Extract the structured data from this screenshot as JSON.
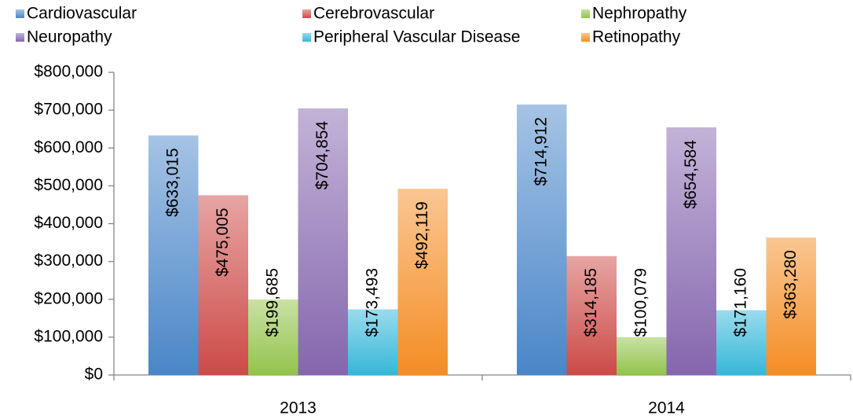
{
  "chart_data": {
    "type": "bar",
    "categories": [
      "2013",
      "2014"
    ],
    "series": [
      {
        "name": "Cardiovascular",
        "color": "#4a86c8",
        "values": [
          633015,
          714912
        ],
        "value_labels": [
          "$633,015",
          "$714,912"
        ]
      },
      {
        "name": "Cerebrovascular",
        "color": "#cc4a47",
        "values": [
          475005,
          314185
        ],
        "value_labels": [
          "$475,005",
          "$314,185"
        ]
      },
      {
        "name": "Nephropathy",
        "color": "#93c34a",
        "values": [
          199685,
          100079
        ],
        "value_labels": [
          "$199,685",
          "$100,079"
        ]
      },
      {
        "name": "Neuropathy",
        "color": "#8566ae",
        "values": [
          704854,
          654584
        ],
        "value_labels": [
          "$704,854",
          "$654,584"
        ]
      },
      {
        "name": "Peripheral Vascular Disease",
        "color": "#35b7d8",
        "values": [
          173493,
          171160
        ],
        "value_labels": [
          "$173,493",
          "$171,160"
        ]
      },
      {
        "name": "Retinopathy",
        "color": "#f48d24",
        "values": [
          492119,
          363280
        ],
        "value_labels": [
          "$492,119",
          "$363,280"
        ]
      }
    ],
    "ylim": [
      0,
      800000
    ],
    "yticks": [
      {
        "value": 0,
        "label": "$0"
      },
      {
        "value": 100000,
        "label": "$100,000"
      },
      {
        "value": 200000,
        "label": "$200,000"
      },
      {
        "value": 300000,
        "label": "$300,000"
      },
      {
        "value": 400000,
        "label": "$400,000"
      },
      {
        "value": 500000,
        "label": "$500,000"
      },
      {
        "value": 600000,
        "label": "$600,000"
      },
      {
        "value": 700000,
        "label": "$700,000"
      },
      {
        "value": 800000,
        "label": "$800,000"
      }
    ],
    "legend": "top"
  }
}
